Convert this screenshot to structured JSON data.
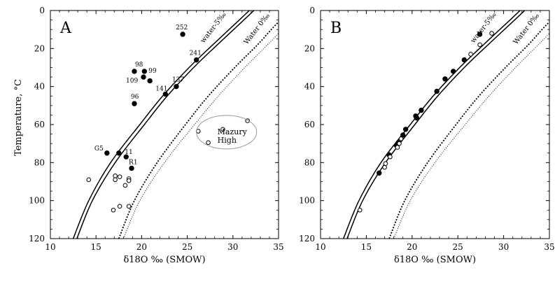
{
  "chart_data": [
    {
      "type": "scatter",
      "panel_label": "A",
      "xlabel": "δ18O ‰ (SMOW)",
      "ylabel": "Temperature, °C",
      "xlim": [
        10,
        35
      ],
      "ylim": [
        0,
        120
      ],
      "y_inverted": true,
      "grid": false,
      "x_ticks": [
        "10",
        "15",
        "20",
        "25",
        "30",
        "35"
      ],
      "y_ticks": [
        "0",
        "20",
        "40",
        "60",
        "80",
        "100",
        "120"
      ],
      "series": [
        {
          "name": "filled",
          "marker": "filled-circle",
          "points": [
            {
              "x": 24.5,
              "y": 12.5,
              "label": "252"
            },
            {
              "x": 26.0,
              "y": 26.0,
              "label": "241"
            },
            {
              "x": 23.8,
              "y": 40.0,
              "label": "137"
            },
            {
              "x": 22.6,
              "y": 44.0,
              "label": "141"
            },
            {
              "x": 19.2,
              "y": 32.0,
              "label": "98"
            },
            {
              "x": 20.3,
              "y": 32.0,
              "label": "99"
            },
            {
              "x": 20.2,
              "y": 35.0,
              "label": "109"
            },
            {
              "x": 20.9,
              "y": 37.0,
              "label": ""
            },
            {
              "x": 19.2,
              "y": 49.0,
              "label": "96"
            },
            {
              "x": 16.2,
              "y": 75.0,
              "label": "G5"
            },
            {
              "x": 17.5,
              "y": 75.0,
              "label": ""
            },
            {
              "x": 18.3,
              "y": 77.0,
              "label": "11"
            },
            {
              "x": 18.9,
              "y": 83.0,
              "label": "R1"
            }
          ]
        },
        {
          "name": "open",
          "marker": "open-circle",
          "points": [
            {
              "x": 14.2,
              "y": 89.0
            },
            {
              "x": 17.1,
              "y": 87.0
            },
            {
              "x": 17.1,
              "y": 89.0
            },
            {
              "x": 17.6,
              "y": 87.5
            },
            {
              "x": 18.2,
              "y": 92.0
            },
            {
              "x": 18.6,
              "y": 88.5
            },
            {
              "x": 18.6,
              "y": 89.5
            },
            {
              "x": 17.6,
              "y": 103.0
            },
            {
              "x": 18.6,
              "y": 103.0
            },
            {
              "x": 16.9,
              "y": 105.0
            },
            {
              "x": 26.2,
              "y": 63.5
            },
            {
              "x": 28.9,
              "y": 62.5
            },
            {
              "x": 27.3,
              "y": 69.5
            },
            {
              "x": 31.6,
              "y": 58.0
            }
          ]
        }
      ],
      "curves": [
        {
          "name": "water-5‰",
          "style": "solid",
          "points": [
            [
              12.5,
              120
            ],
            [
              14.2,
              100
            ],
            [
              16.6,
              80
            ],
            [
              19.8,
              60
            ],
            [
              22.3,
              45
            ],
            [
              25.2,
              30
            ],
            [
              27.8,
              18
            ],
            [
              30.7,
              5
            ],
            [
              31.8,
              0
            ]
          ]
        },
        {
          "name": "",
          "style": "solid",
          "points": [
            [
              12.9,
              120
            ],
            [
              14.6,
              100
            ],
            [
              17.1,
              80
            ],
            [
              20.3,
              60
            ],
            [
              22.8,
              45
            ],
            [
              25.7,
              30
            ],
            [
              28.3,
              18
            ],
            [
              31.2,
              5
            ],
            [
              32.3,
              0
            ]
          ]
        },
        {
          "name": "Water 0‰",
          "style": "dotted",
          "points": [
            [
              17.5,
              120
            ],
            [
              19.2,
              100
            ],
            [
              21.7,
              80
            ],
            [
              24.8,
              60
            ],
            [
              27.3,
              45
            ],
            [
              30.2,
              30
            ],
            [
              32.7,
              18
            ],
            [
              34.2,
              10
            ],
            [
              35.0,
              6
            ]
          ]
        },
        {
          "name": "",
          "style": "dotted",
          "points": [
            [
              18.0,
              120
            ],
            [
              19.8,
              100
            ],
            [
              22.5,
              80
            ],
            [
              25.8,
              60
            ],
            [
              28.4,
              45
            ],
            [
              31.3,
              30
            ],
            [
              33.8,
              18
            ],
            [
              35.0,
              12
            ]
          ]
        }
      ],
      "annotations": [
        {
          "text_lines": [
            "Mazury",
            "High"
          ],
          "enclosed_by": "ellipse",
          "center": [
            29.3,
            64.0
          ]
        }
      ]
    },
    {
      "type": "scatter",
      "panel_label": "B",
      "xlabel": "δ18O ‰ (SMOW)",
      "ylabel": "",
      "xlim": [
        10,
        35
      ],
      "ylim": [
        0,
        120
      ],
      "y_inverted": true,
      "grid": false,
      "x_ticks": [
        "10",
        "15",
        "20",
        "25",
        "30",
        "35"
      ],
      "y_ticks": [
        "0",
        "20",
        "40",
        "60",
        "80",
        "100",
        "120"
      ],
      "series": [
        {
          "name": "filled",
          "marker": "filled-circle",
          "points": [
            {
              "x": 27.4,
              "y": 12.5
            },
            {
              "x": 25.7,
              "y": 26.0
            },
            {
              "x": 24.5,
              "y": 32.0
            },
            {
              "x": 23.6,
              "y": 36.0
            },
            {
              "x": 22.7,
              "y": 42.5
            },
            {
              "x": 21.0,
              "y": 52.5
            },
            {
              "x": 20.5,
              "y": 56.5
            },
            {
              "x": 20.4,
              "y": 55.5
            },
            {
              "x": 19.3,
              "y": 62.5
            },
            {
              "x": 19.0,
              "y": 65.5
            },
            {
              "x": 18.5,
              "y": 69.5
            },
            {
              "x": 18.3,
              "y": 71.0
            },
            {
              "x": 17.5,
              "y": 76.0
            },
            {
              "x": 16.4,
              "y": 85.5
            }
          ]
        },
        {
          "name": "open",
          "marker": "open-circle",
          "points": [
            {
              "x": 28.7,
              "y": 12.0
            },
            {
              "x": 27.4,
              "y": 18.0
            },
            {
              "x": 26.4,
              "y": 23.0
            },
            {
              "x": 18.8,
              "y": 67.5
            },
            {
              "x": 18.6,
              "y": 70.0
            },
            {
              "x": 18.4,
              "y": 72.0
            },
            {
              "x": 17.6,
              "y": 77.0
            },
            {
              "x": 17.1,
              "y": 80.5
            },
            {
              "x": 17.0,
              "y": 82.5
            },
            {
              "x": 14.3,
              "y": 105.0
            }
          ]
        }
      ],
      "curves": [
        {
          "name": "water-5‰",
          "style": "solid",
          "points": [
            [
              12.5,
              120
            ],
            [
              14.2,
              100
            ],
            [
              16.6,
              80
            ],
            [
              19.8,
              60
            ],
            [
              22.3,
              45
            ],
            [
              25.2,
              30
            ],
            [
              27.8,
              18
            ],
            [
              30.7,
              5
            ],
            [
              31.8,
              0
            ]
          ]
        },
        {
          "name": "",
          "style": "solid",
          "points": [
            [
              12.9,
              120
            ],
            [
              14.6,
              100
            ],
            [
              17.1,
              80
            ],
            [
              20.3,
              60
            ],
            [
              22.8,
              45
            ],
            [
              25.7,
              30
            ],
            [
              28.3,
              18
            ],
            [
              31.2,
              5
            ],
            [
              32.3,
              0
            ]
          ]
        },
        {
          "name": "Water 0‰",
          "style": "dotted",
          "points": [
            [
              17.5,
              120
            ],
            [
              19.2,
              100
            ],
            [
              21.7,
              80
            ],
            [
              24.8,
              60
            ],
            [
              27.3,
              45
            ],
            [
              30.2,
              30
            ],
            [
              32.7,
              18
            ],
            [
              34.2,
              10
            ],
            [
              35.0,
              6
            ]
          ]
        },
        {
          "name": "",
          "style": "dotted",
          "points": [
            [
              18.0,
              120
            ],
            [
              19.8,
              100
            ],
            [
              22.5,
              80
            ],
            [
              25.8,
              60
            ],
            [
              28.4,
              45
            ],
            [
              31.3,
              30
            ],
            [
              33.8,
              18
            ],
            [
              35.0,
              12
            ]
          ]
        }
      ],
      "annotations": []
    }
  ]
}
